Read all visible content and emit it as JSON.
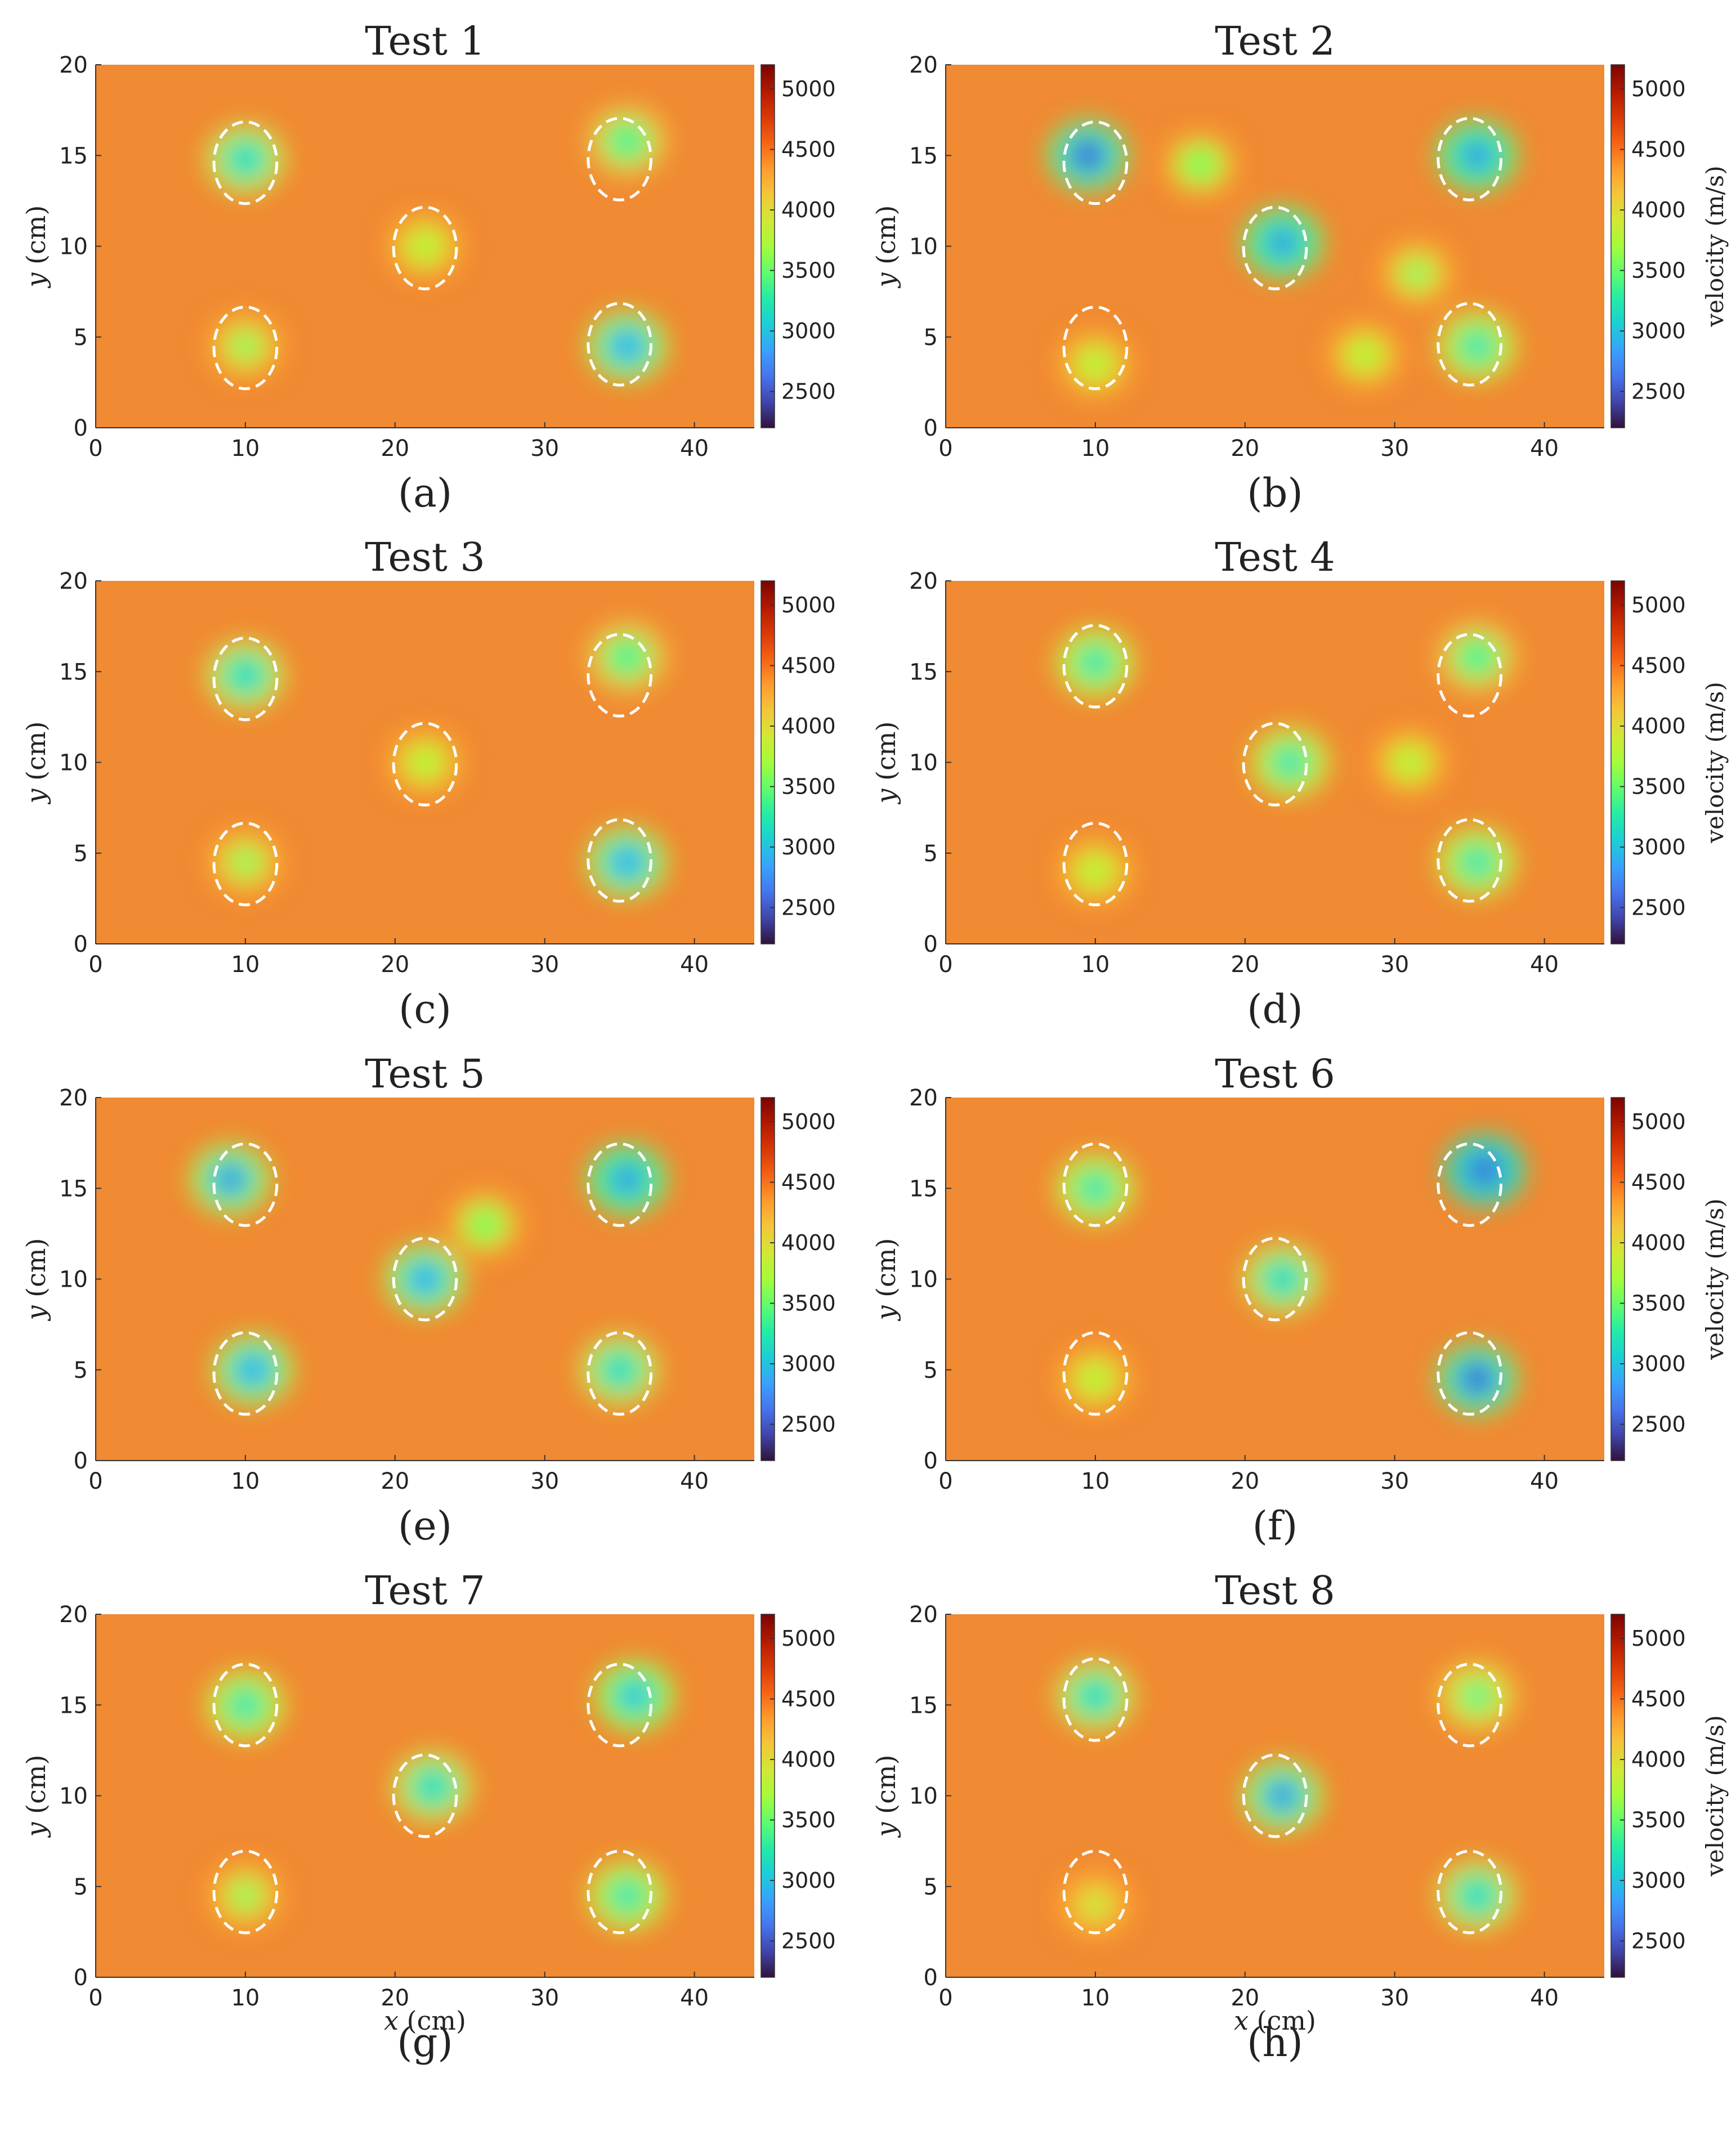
{
  "figure": {
    "colormap": [
      "#30123b",
      "#4145ab",
      "#4675ed",
      "#39a2fc",
      "#1bcfd4",
      "#24eca6",
      "#61fc6c",
      "#a4fc3b",
      "#d1e834",
      "#f3c63a",
      "#fe9b2d",
      "#f36315",
      "#d93806",
      "#b11901",
      "#7a0402"
    ],
    "background_color": "#f08a33",
    "ellipse_color": "#ffffff"
  },
  "chart_data": [
    {
      "type": "heatmap",
      "title": "Test 1",
      "sublabel": "(a)",
      "xlabel": "",
      "ylabel": "y (cm)",
      "colorbar_label": "",
      "xlim": [
        0,
        44
      ],
      "ylim": [
        0,
        20
      ],
      "xticks": [
        "0",
        "10",
        "20",
        "30",
        "40"
      ],
      "yticks": [
        "0",
        "5",
        "10",
        "15",
        "20"
      ],
      "color_range": [
        2200,
        5200
      ],
      "colorbar_ticks": [
        "2500",
        "3000",
        "3500",
        "4000",
        "4500",
        "5000"
      ],
      "anomalies": [
        {
          "x": 10,
          "y": 14.8,
          "min_velocity": 3000
        },
        {
          "x": 35.5,
          "y": 15.8,
          "min_velocity": 3200
        },
        {
          "x": 22,
          "y": 10,
          "min_velocity": 3600
        },
        {
          "x": 10,
          "y": 4.5,
          "min_velocity": 3500
        },
        {
          "x": 35.5,
          "y": 4.5,
          "min_velocity": 2800
        }
      ],
      "marked_regions": [
        {
          "x": 10,
          "y": 14.6
        },
        {
          "x": 35,
          "y": 14.8
        },
        {
          "x": 22,
          "y": 9.9
        },
        {
          "x": 10,
          "y": 4.4
        },
        {
          "x": 35,
          "y": 4.6
        }
      ]
    },
    {
      "type": "heatmap",
      "title": "Test 2",
      "sublabel": "(b)",
      "xlabel": "",
      "ylabel": "y (cm)",
      "colorbar_label": "velocity (m/s)",
      "xlim": [
        0,
        44
      ],
      "ylim": [
        0,
        20
      ],
      "xticks": [
        "0",
        "10",
        "20",
        "30",
        "40"
      ],
      "yticks": [
        "0",
        "5",
        "10",
        "15",
        "20"
      ],
      "color_range": [
        2200,
        5200
      ],
      "colorbar_ticks": [
        "2500",
        "3000",
        "3500",
        "4000",
        "4500",
        "5000"
      ],
      "anomalies": [
        {
          "x": 9.5,
          "y": 15,
          "min_velocity": 2500
        },
        {
          "x": 35.5,
          "y": 15,
          "min_velocity": 2600
        },
        {
          "x": 22.5,
          "y": 10.2,
          "min_velocity": 2600
        },
        {
          "x": 17,
          "y": 14.5,
          "min_velocity": 3400
        },
        {
          "x": 10,
          "y": 3.5,
          "min_velocity": 3600
        },
        {
          "x": 35.5,
          "y": 4.5,
          "min_velocity": 3100
        },
        {
          "x": 31.5,
          "y": 8.5,
          "min_velocity": 3500
        },
        {
          "x": 28,
          "y": 4,
          "min_velocity": 3600
        }
      ],
      "marked_regions": [
        {
          "x": 10,
          "y": 14.6
        },
        {
          "x": 35,
          "y": 14.8
        },
        {
          "x": 22,
          "y": 9.9
        },
        {
          "x": 10,
          "y": 4.4
        },
        {
          "x": 35,
          "y": 4.6
        }
      ]
    },
    {
      "type": "heatmap",
      "title": "Test 3",
      "sublabel": "(c)",
      "xlabel": "",
      "ylabel": "y (cm)",
      "colorbar_label": "",
      "xlim": [
        0,
        44
      ],
      "ylim": [
        0,
        20
      ],
      "xticks": [
        "0",
        "10",
        "20",
        "30",
        "40"
      ],
      "yticks": [
        "0",
        "5",
        "10",
        "15",
        "20"
      ],
      "color_range": [
        2200,
        5200
      ],
      "colorbar_ticks": [
        "2500",
        "3000",
        "3500",
        "4000",
        "4500",
        "5000"
      ],
      "anomalies": [
        {
          "x": 10,
          "y": 14.8,
          "min_velocity": 3000
        },
        {
          "x": 35.5,
          "y": 15.8,
          "min_velocity": 3200
        },
        {
          "x": 22,
          "y": 10,
          "min_velocity": 3600
        },
        {
          "x": 10,
          "y": 4.5,
          "min_velocity": 3500
        },
        {
          "x": 35.5,
          "y": 4.5,
          "min_velocity": 2800
        }
      ],
      "marked_regions": [
        {
          "x": 10,
          "y": 14.6
        },
        {
          "x": 35,
          "y": 14.8
        },
        {
          "x": 22,
          "y": 9.9
        },
        {
          "x": 10,
          "y": 4.4
        },
        {
          "x": 35,
          "y": 4.6
        }
      ]
    },
    {
      "type": "heatmap",
      "title": "Test 4",
      "sublabel": "(d)",
      "xlabel": "",
      "ylabel": "y (cm)",
      "colorbar_label": "velocity (m/s)",
      "xlim": [
        0,
        44
      ],
      "ylim": [
        0,
        20
      ],
      "xticks": [
        "0",
        "10",
        "20",
        "30",
        "40"
      ],
      "yticks": [
        "0",
        "5",
        "10",
        "15",
        "20"
      ],
      "color_range": [
        2200,
        5200
      ],
      "colorbar_ticks": [
        "2500",
        "3000",
        "3500",
        "4000",
        "4500",
        "5000"
      ],
      "anomalies": [
        {
          "x": 10,
          "y": 15.5,
          "min_velocity": 3100
        },
        {
          "x": 35.5,
          "y": 15.8,
          "min_velocity": 3200
        },
        {
          "x": 23,
          "y": 10,
          "min_velocity": 3100
        },
        {
          "x": 10,
          "y": 4,
          "min_velocity": 3600
        },
        {
          "x": 35.5,
          "y": 4.5,
          "min_velocity": 3100
        },
        {
          "x": 31,
          "y": 10,
          "min_velocity": 3600
        }
      ],
      "marked_regions": [
        {
          "x": 10,
          "y": 15.3
        },
        {
          "x": 35,
          "y": 14.8
        },
        {
          "x": 22,
          "y": 9.9
        },
        {
          "x": 10,
          "y": 4.4
        },
        {
          "x": 35,
          "y": 4.6
        }
      ]
    },
    {
      "type": "heatmap",
      "title": "Test 5",
      "sublabel": "(e)",
      "xlabel": "",
      "ylabel": "y (cm)",
      "colorbar_label": "",
      "xlim": [
        0,
        44
      ],
      "ylim": [
        0,
        20
      ],
      "xticks": [
        "0",
        "10",
        "20",
        "30",
        "40"
      ],
      "yticks": [
        "0",
        "5",
        "10",
        "15",
        "20"
      ],
      "color_range": [
        2200,
        5200
      ],
      "colorbar_ticks": [
        "2500",
        "3000",
        "3500",
        "4000",
        "4500",
        "5000"
      ],
      "anomalies": [
        {
          "x": 9,
          "y": 15.5,
          "min_velocity": 2700
        },
        {
          "x": 35.5,
          "y": 15.5,
          "min_velocity": 2600
        },
        {
          "x": 22,
          "y": 10,
          "min_velocity": 2800
        },
        {
          "x": 10.5,
          "y": 5,
          "min_velocity": 2800
        },
        {
          "x": 35,
          "y": 5,
          "min_velocity": 3000
        },
        {
          "x": 26,
          "y": 13,
          "min_velocity": 3400
        }
      ],
      "marked_regions": [
        {
          "x": 10,
          "y": 15.2
        },
        {
          "x": 35,
          "y": 15.2
        },
        {
          "x": 22,
          "y": 10
        },
        {
          "x": 10,
          "y": 4.8
        },
        {
          "x": 35,
          "y": 4.8
        }
      ]
    },
    {
      "type": "heatmap",
      "title": "Test 6",
      "sublabel": "(f)",
      "xlabel": "",
      "ylabel": "y (cm)",
      "colorbar_label": "velocity (m/s)",
      "xlim": [
        0,
        44
      ],
      "ylim": [
        0,
        20
      ],
      "xticks": [
        "0",
        "10",
        "20",
        "30",
        "40"
      ],
      "yticks": [
        "0",
        "5",
        "10",
        "15",
        "20"
      ],
      "color_range": [
        2200,
        5200
      ],
      "colorbar_ticks": [
        "2500",
        "3000",
        "3500",
        "4000",
        "4500",
        "5000"
      ],
      "anomalies": [
        {
          "x": 10,
          "y": 15,
          "min_velocity": 3100
        },
        {
          "x": 36,
          "y": 16,
          "min_velocity": 2400
        },
        {
          "x": 22.5,
          "y": 10,
          "min_velocity": 3000
        },
        {
          "x": 10,
          "y": 4.5,
          "min_velocity": 3600
        },
        {
          "x": 35.5,
          "y": 4.5,
          "min_velocity": 2500
        }
      ],
      "marked_regions": [
        {
          "x": 10,
          "y": 15.2
        },
        {
          "x": 35,
          "y": 15.2
        },
        {
          "x": 22,
          "y": 10
        },
        {
          "x": 10,
          "y": 4.8
        },
        {
          "x": 35,
          "y": 4.8
        }
      ]
    },
    {
      "type": "heatmap",
      "title": "Test 7",
      "sublabel": "(g)",
      "xlabel": "x (cm)",
      "ylabel": "y (cm)",
      "colorbar_label": "",
      "xlim": [
        0,
        44
      ],
      "ylim": [
        0,
        20
      ],
      "xticks": [
        "0",
        "10",
        "20",
        "30",
        "40"
      ],
      "yticks": [
        "0",
        "5",
        "10",
        "15",
        "20"
      ],
      "color_range": [
        2200,
        5200
      ],
      "colorbar_ticks": [
        "2500",
        "3000",
        "3500",
        "4000",
        "4500",
        "5000"
      ],
      "anomalies": [
        {
          "x": 10,
          "y": 15,
          "min_velocity": 3100
        },
        {
          "x": 36,
          "y": 15.5,
          "min_velocity": 2900
        },
        {
          "x": 22.5,
          "y": 10.5,
          "min_velocity": 3000
        },
        {
          "x": 10,
          "y": 4.5,
          "min_velocity": 3500
        },
        {
          "x": 35.5,
          "y": 4.5,
          "min_velocity": 3100
        }
      ],
      "marked_regions": [
        {
          "x": 10,
          "y": 15
        },
        {
          "x": 35,
          "y": 15
        },
        {
          "x": 22,
          "y": 10
        },
        {
          "x": 10,
          "y": 4.7
        },
        {
          "x": 35,
          "y": 4.7
        }
      ]
    },
    {
      "type": "heatmap",
      "title": "Test 8",
      "sublabel": "(h)",
      "xlabel": "x (cm)",
      "ylabel": "y (cm)",
      "colorbar_label": "velocity (m/s)",
      "xlim": [
        0,
        44
      ],
      "ylim": [
        0,
        20
      ],
      "xticks": [
        "0",
        "10",
        "20",
        "30",
        "40"
      ],
      "yticks": [
        "0",
        "5",
        "10",
        "15",
        "20"
      ],
      "color_range": [
        2200,
        5200
      ],
      "colorbar_ticks": [
        "2500",
        "3000",
        "3500",
        "4000",
        "4500",
        "5000"
      ],
      "anomalies": [
        {
          "x": 10,
          "y": 15.5,
          "min_velocity": 3000
        },
        {
          "x": 35.5,
          "y": 15.5,
          "min_velocity": 3300
        },
        {
          "x": 22.5,
          "y": 10,
          "min_velocity": 2700
        },
        {
          "x": 10,
          "y": 4,
          "min_velocity": 3700
        },
        {
          "x": 35.5,
          "y": 4.5,
          "min_velocity": 3000
        }
      ],
      "marked_regions": [
        {
          "x": 10,
          "y": 15.3
        },
        {
          "x": 35,
          "y": 15
        },
        {
          "x": 22,
          "y": 10
        },
        {
          "x": 10,
          "y": 4.7
        },
        {
          "x": 35,
          "y": 4.7
        }
      ]
    }
  ]
}
